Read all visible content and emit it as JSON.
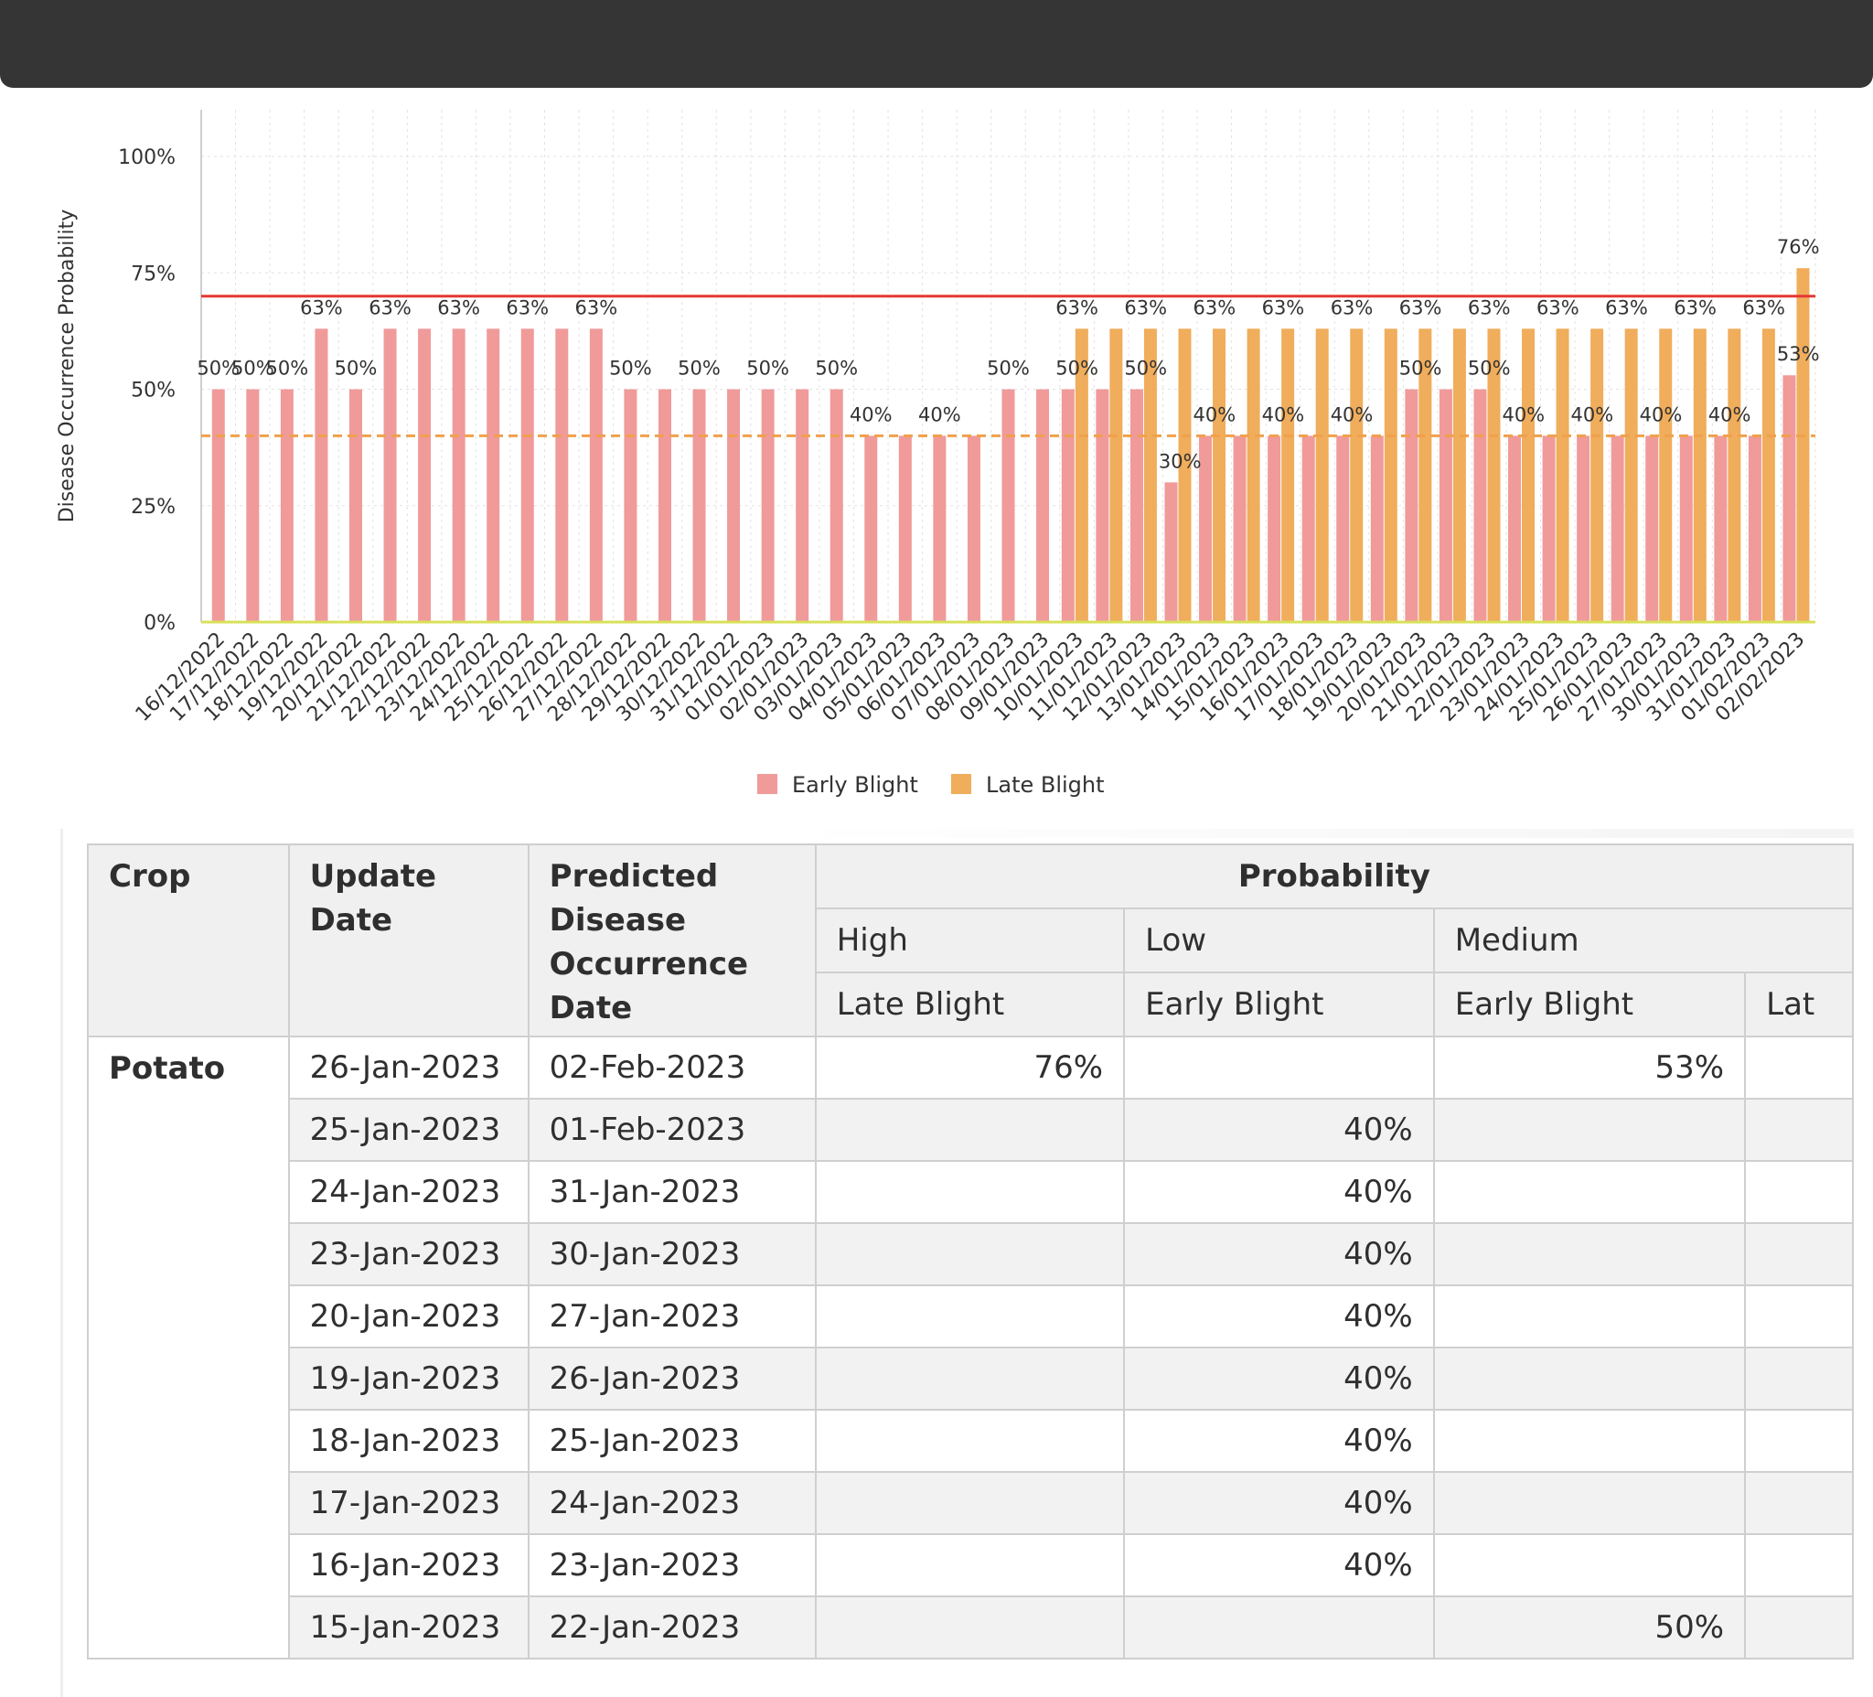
{
  "chart_data": {
    "type": "bar",
    "ylabel": "Disease Occurrence Probability",
    "ylim": [
      0,
      110
    ],
    "yticks": [
      "0%",
      "25%",
      "50%",
      "75%",
      "100%"
    ],
    "ytick_values": [
      0,
      25,
      50,
      75,
      100
    ],
    "threshold_high": 70,
    "threshold_medium": 40,
    "categories": [
      "16/12/2022",
      "17/12/2022",
      "18/12/2022",
      "19/12/2022",
      "20/12/2022",
      "21/12/2022",
      "22/12/2022",
      "23/12/2022",
      "24/12/2022",
      "25/12/2022",
      "26/12/2022",
      "27/12/2022",
      "28/12/2022",
      "29/12/2022",
      "30/12/2022",
      "31/12/2022",
      "01/01/2023",
      "02/01/2023",
      "03/01/2023",
      "04/01/2023",
      "05/01/2023",
      "06/01/2023",
      "07/01/2023",
      "08/01/2023",
      "09/01/2023",
      "10/01/2023",
      "11/01/2023",
      "12/01/2023",
      "13/01/2023",
      "14/01/2023",
      "15/01/2023",
      "16/01/2023",
      "17/01/2023",
      "18/01/2023",
      "19/01/2023",
      "20/01/2023",
      "21/01/2023",
      "22/01/2023",
      "23/01/2023",
      "24/01/2023",
      "25/01/2023",
      "26/01/2023",
      "27/01/2023",
      "30/01/2023",
      "31/01/2023",
      "01/02/2023",
      "02/02/2023"
    ],
    "series": [
      {
        "name": "Early Blight",
        "color": "#f09a9a",
        "values": [
          50,
          50,
          50,
          63,
          50,
          63,
          63,
          63,
          63,
          63,
          63,
          63,
          50,
          50,
          50,
          50,
          50,
          50,
          50,
          40,
          40,
          40,
          40,
          50,
          50,
          50,
          50,
          50,
          30,
          40,
          40,
          40,
          40,
          40,
          40,
          50,
          50,
          50,
          40,
          40,
          40,
          40,
          40,
          40,
          40,
          40,
          53
        ],
        "labels": [
          "50%",
          "50%",
          "50%",
          "63%",
          "50%",
          "63%",
          "",
          "63%",
          "",
          "63%",
          "",
          "63%",
          "50%",
          "",
          "50%",
          "",
          "50%",
          "",
          "50%",
          "40%",
          "",
          "40%",
          "",
          "50%",
          "",
          "50%",
          "",
          "50%",
          "30%",
          "40%",
          "",
          "40%",
          "",
          "40%",
          "",
          "50%",
          "",
          "50%",
          "40%",
          "",
          "40%",
          "",
          "40%",
          "",
          "40%",
          "",
          "53%"
        ]
      },
      {
        "name": "Late Blight",
        "color": "#f0ad5b",
        "values": [
          0,
          0,
          0,
          0,
          0,
          0,
          0,
          0,
          0,
          0,
          0,
          0,
          0,
          0,
          0,
          0,
          0,
          0,
          0,
          0,
          0,
          0,
          0,
          0,
          0,
          63,
          63,
          63,
          63,
          63,
          63,
          63,
          63,
          63,
          63,
          63,
          63,
          63,
          63,
          63,
          63,
          63,
          63,
          63,
          63,
          63,
          76
        ],
        "labels": [
          "",
          "",
          "",
          "",
          "",
          "",
          "",
          "",
          "",
          "",
          "",
          "",
          "",
          "",
          "",
          "",
          "",
          "",
          "",
          "",
          "",
          "",
          "",
          "",
          "",
          "63%",
          "",
          "63%",
          "",
          "63%",
          "",
          "63%",
          "",
          "63%",
          "",
          "63%",
          "",
          "63%",
          "",
          "63%",
          "",
          "63%",
          "",
          "63%",
          "",
          "63%",
          "76%"
        ]
      }
    ]
  },
  "table": {
    "headers": {
      "crop": "Crop",
      "update_date": "Update Date",
      "predicted_date": "Predicted Disease Occurrence Date",
      "probability": "Probability",
      "level_high": "High",
      "level_low": "Low",
      "level_medium": "Medium",
      "disease_high": "Late Blight",
      "disease_low": "Early Blight",
      "disease_medium": "Early Blight",
      "disease_cut": "Lat"
    },
    "crop": "Potato",
    "rows": [
      {
        "update": "26-Jan-2023",
        "predicted": "02-Feb-2023",
        "high": "76%",
        "low": "",
        "medium": "53%"
      },
      {
        "update": "25-Jan-2023",
        "predicted": "01-Feb-2023",
        "high": "",
        "low": "40%",
        "medium": ""
      },
      {
        "update": "24-Jan-2023",
        "predicted": "31-Jan-2023",
        "high": "",
        "low": "40%",
        "medium": ""
      },
      {
        "update": "23-Jan-2023",
        "predicted": "30-Jan-2023",
        "high": "",
        "low": "40%",
        "medium": ""
      },
      {
        "update": "20-Jan-2023",
        "predicted": "27-Jan-2023",
        "high": "",
        "low": "40%",
        "medium": ""
      },
      {
        "update": "19-Jan-2023",
        "predicted": "26-Jan-2023",
        "high": "",
        "low": "40%",
        "medium": ""
      },
      {
        "update": "18-Jan-2023",
        "predicted": "25-Jan-2023",
        "high": "",
        "low": "40%",
        "medium": ""
      },
      {
        "update": "17-Jan-2023",
        "predicted": "24-Jan-2023",
        "high": "",
        "low": "40%",
        "medium": ""
      },
      {
        "update": "16-Jan-2023",
        "predicted": "23-Jan-2023",
        "high": "",
        "low": "40%",
        "medium": ""
      },
      {
        "update": "15-Jan-2023",
        "predicted": "22-Jan-2023",
        "high": "",
        "low": "",
        "medium": "50%"
      }
    ]
  }
}
